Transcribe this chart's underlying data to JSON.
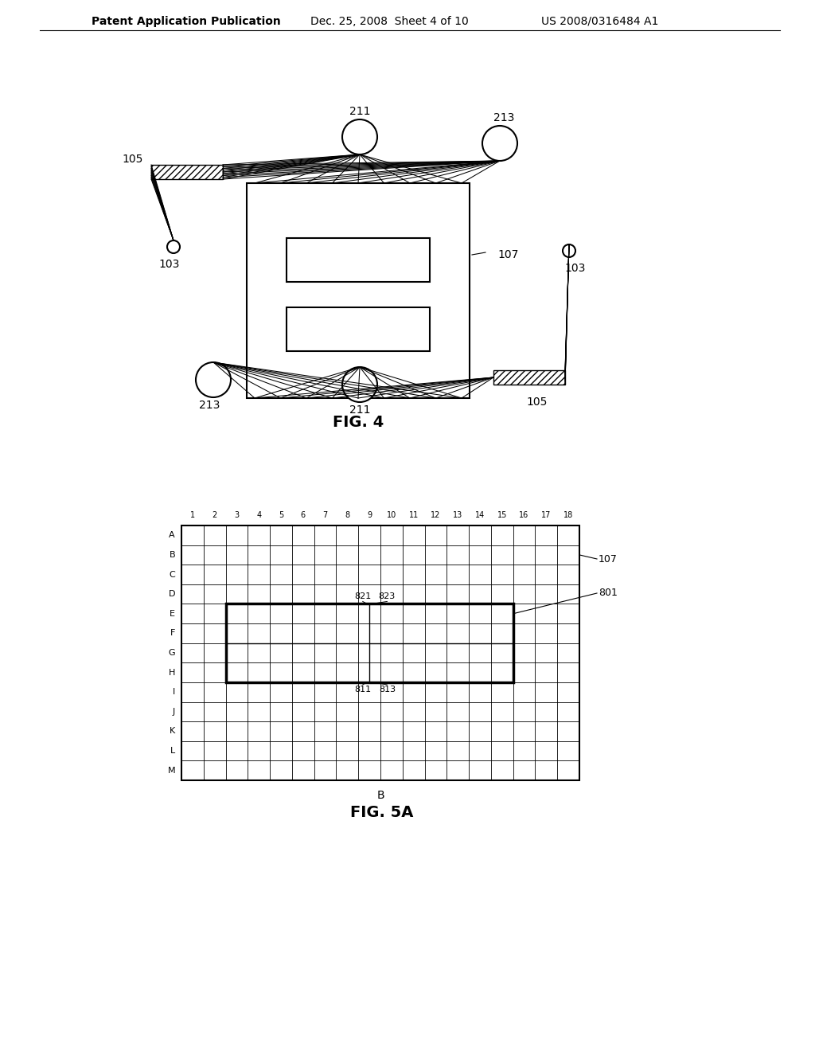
{
  "bg_color": "#ffffff",
  "header_text": "Patent Application Publication",
  "header_date": "Dec. 25, 2008  Sheet 4 of 10",
  "header_patent": "US 2008/0316484 A1",
  "fig4_label": "FIG. 4",
  "fig5a_label": "FIG. 5A",
  "grid_cols": 18,
  "grid_rows": 13,
  "grid_col_labels": [
    "1",
    "2",
    "3",
    "4",
    "5",
    "6",
    "7",
    "8",
    "9",
    "10",
    "11",
    "12",
    "13",
    "14",
    "15",
    "16",
    "17",
    "18"
  ],
  "grid_row_labels": [
    "A",
    "B",
    "C",
    "D",
    "E",
    "F",
    "G",
    "H",
    "I",
    "J",
    "K",
    "L",
    "M"
  ],
  "grid_xlabel": "B",
  "inner_rect_label": "801",
  "outer_rect_label": "107"
}
